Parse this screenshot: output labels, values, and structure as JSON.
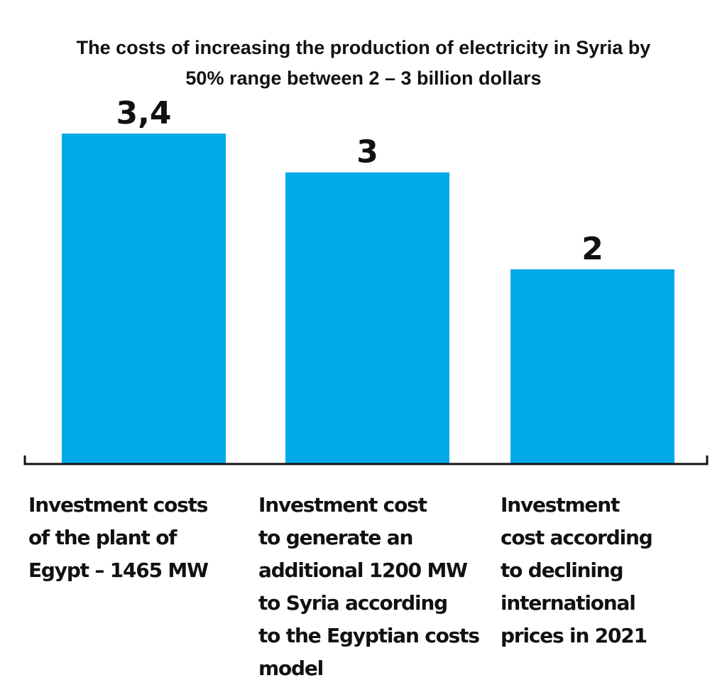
{
  "chart_data": {
    "type": "bar",
    "title_line1": "The costs of increasing the production of electricity in Syria by",
    "title_line2": "50%  range between 2 – 3 billion dollars",
    "categories": [
      "Investment costs\nof the plant of\nEgypt – 1465 MW",
      "Investment cost\nto generate an\nadditional 1200 MW\nto Syria according\nto the Egyptian costs\nmodel",
      "Investment\ncost according\nto declining\ninternational\nprices in 2021"
    ],
    "values": [
      3.4,
      3,
      2
    ],
    "data_labels": [
      "3,4",
      "3",
      "2"
    ],
    "ylim": [
      0,
      3.4
    ],
    "bar_color": "#00a9ea",
    "axis_color": "#111111",
    "text_color": "#111111"
  }
}
